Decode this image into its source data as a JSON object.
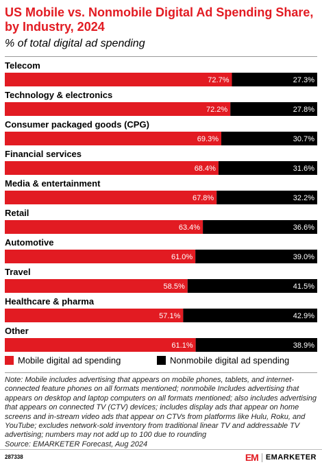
{
  "header": {
    "title": "US Mobile vs. Nonmobile Digital Ad Spending Share, by Industry, 2024",
    "subtitle": "% of total digital ad spending"
  },
  "chart_data": {
    "type": "bar",
    "stacked": true,
    "orientation": "horizontal",
    "categories": [
      "Telecom",
      "Technology & electronics",
      "Consumer packaged goods (CPG)",
      "Financial services",
      "Media & entertainment",
      "Retail",
      "Automotive",
      "Travel",
      "Healthcare & pharma",
      "Other"
    ],
    "series": [
      {
        "name": "Mobile digital ad spending",
        "color": "#e21b22",
        "values": [
          72.7,
          72.2,
          69.3,
          68.4,
          67.8,
          63.4,
          61.0,
          58.5,
          57.1,
          61.1
        ],
        "labels": [
          "72.7%",
          "72.2%",
          "69.3%",
          "68.4%",
          "67.8%",
          "63.4%",
          "61.0%",
          "58.5%",
          "57.1%",
          "61.1%"
        ]
      },
      {
        "name": "Nonmobile digital ad spending",
        "color": "#000000",
        "values": [
          27.3,
          27.8,
          30.7,
          31.6,
          32.2,
          36.6,
          39.0,
          41.5,
          42.9,
          38.9
        ],
        "labels": [
          "27.3%",
          "27.8%",
          "30.7%",
          "31.6%",
          "32.2%",
          "36.6%",
          "39.0%",
          "41.5%",
          "42.9%",
          "38.9%"
        ]
      }
    ],
    "xlim": [
      0,
      100
    ],
    "grid": false,
    "legend_position": "bottom"
  },
  "legend": {
    "mobile_label": "Mobile digital ad spending",
    "nonmobile_label": "Nonmobile digital ad spending"
  },
  "note": "Note: Mobile includes advertising that appears on mobile phones, tablets, and internet-connected feature phones on all formats mentioned; nonmobile Includes advertising that appears on desktop and laptop computers on all formats mentioned; also includes advertising that appears on connected TV (CTV) devices; includes display ads that appear on home screens and in-stream video ads that appear on CTVs from platforms like Hulu, Roku, and YouTube; excludes network-sold inventory from traditional linear TV and addressable TV advertising; numbers may not add up to 100 due to rounding",
  "source": "Source: EMARKETER Forecast, Aug 2024",
  "footer": {
    "chart_id": "287338",
    "brand_mark": "EM",
    "brand_name": "EMARKETER",
    "brand_color": "#e21b22"
  }
}
